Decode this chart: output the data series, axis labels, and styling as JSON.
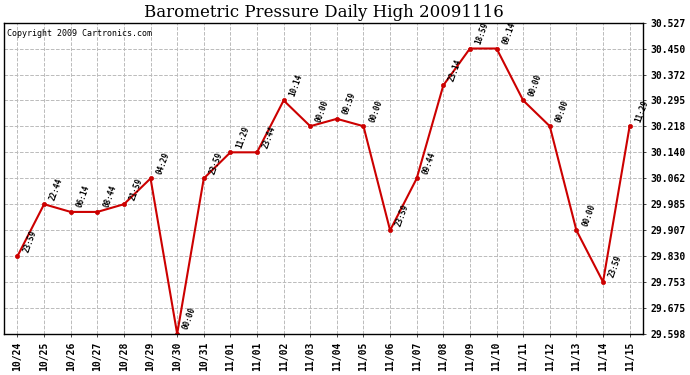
{
  "title": "Barometric Pressure Daily High 20091116",
  "copyright": "Copyright 2009 Cartronics.com",
  "background_color": "#ffffff",
  "line_color": "#cc0000",
  "marker_color": "#cc0000",
  "grid_color": "#bbbbbb",
  "x_labels": [
    "10/24",
    "10/25",
    "10/26",
    "10/27",
    "10/28",
    "10/29",
    "10/30",
    "10/31",
    "11/01",
    "11/01",
    "11/02",
    "11/03",
    "11/04",
    "11/05",
    "11/06",
    "11/07",
    "11/08",
    "11/09",
    "11/10",
    "11/11",
    "11/12",
    "11/13",
    "11/14",
    "11/15"
  ],
  "y_values": [
    29.83,
    29.985,
    29.962,
    29.962,
    29.985,
    30.062,
    29.598,
    30.062,
    30.14,
    30.14,
    30.295,
    30.218,
    30.24,
    30.218,
    29.907,
    30.062,
    30.34,
    30.45,
    30.45,
    30.295,
    30.218,
    29.907,
    29.753,
    30.218
  ],
  "time_labels": [
    "23:59",
    "22:44",
    "06:14",
    "08:44",
    "21:59",
    "04:29",
    "00:00",
    "23:59",
    "11:29",
    "23:44",
    "10:14",
    "00:00",
    "09:59",
    "00:00",
    "23:59",
    "09:44",
    "23:14",
    "18:59",
    "09:14",
    "00:00",
    "00:00",
    "00:00",
    "23:59",
    "11:29"
  ],
  "ylim_min": 29.598,
  "ylim_max": 30.527,
  "yticks": [
    29.598,
    29.675,
    29.753,
    29.83,
    29.907,
    29.985,
    30.062,
    30.14,
    30.218,
    30.295,
    30.372,
    30.45,
    30.527
  ]
}
